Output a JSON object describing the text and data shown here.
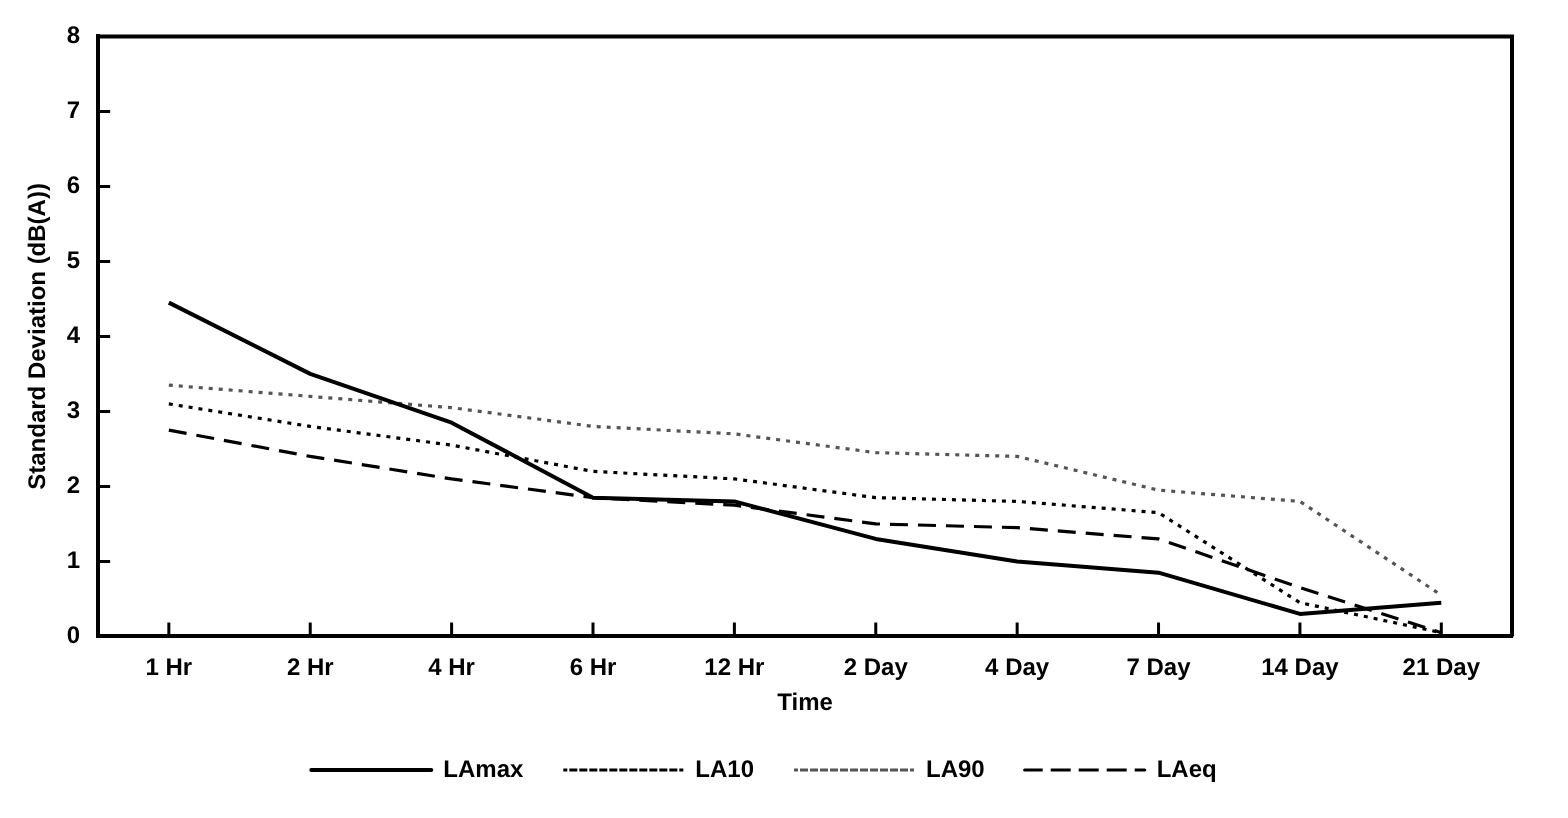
{
  "chart_data": {
    "type": "line",
    "xlabel": "Time",
    "ylabel": "Standard Deviation (dB(A))",
    "categories": [
      "1 Hr",
      "2 Hr",
      "4 Hr",
      "6 Hr",
      "12 Hr",
      "2 Day",
      "4 Day",
      "7 Day",
      "14 Day",
      "21 Day"
    ],
    "series": [
      {
        "name": "LAmax",
        "color": "#000000",
        "line_style": "solid",
        "values": [
          4.45,
          3.5,
          2.85,
          1.85,
          1.8,
          1.3,
          1.0,
          0.85,
          0.3,
          0.45
        ]
      },
      {
        "name": "LA10",
        "color": "#000000",
        "line_style": "dotted",
        "values": [
          3.1,
          2.8,
          2.55,
          2.2,
          2.1,
          1.85,
          1.8,
          1.65,
          0.45,
          0.05
        ]
      },
      {
        "name": "LA90",
        "color": "#555555",
        "line_style": "dotted",
        "values": [
          3.35,
          3.2,
          3.05,
          2.8,
          2.7,
          2.45,
          2.4,
          1.95,
          1.8,
          0.55
        ]
      },
      {
        "name": "LAeq",
        "color": "#000000",
        "line_style": "dashed",
        "values": [
          2.75,
          2.4,
          2.1,
          1.85,
          1.75,
          1.5,
          1.45,
          1.3,
          0.65,
          0.05
        ]
      }
    ],
    "ylim": [
      0,
      8
    ],
    "yticks": [
      0,
      1,
      2,
      3,
      4,
      5,
      6,
      7,
      8
    ],
    "grid": false,
    "legend": "bottom",
    "marker": "none"
  }
}
